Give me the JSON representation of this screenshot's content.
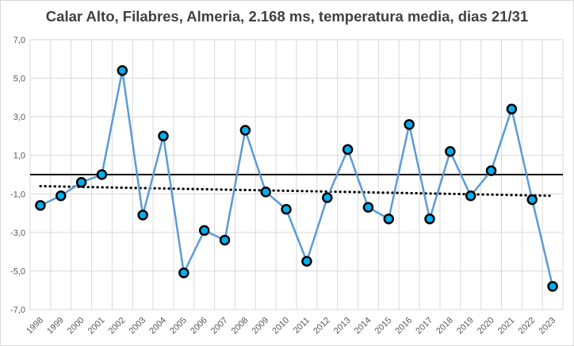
{
  "chart_data": {
    "type": "line",
    "title": "Calar Alto, Filabres, Almeria, 2.168 ms, temperatura media, dias 21/31",
    "xlabel": "",
    "ylabel": "",
    "ylim": [
      -7,
      7
    ],
    "yticks": [
      "7,0",
      "5,0",
      "3,0",
      "1,0",
      "-1,0",
      "-3,0",
      "-5,0",
      "-7,0"
    ],
    "grid": true,
    "categories": [
      "1998",
      "1999",
      "2000",
      "2001",
      "2002",
      "2003",
      "2004",
      "2005",
      "2006",
      "2007",
      "2008",
      "2009",
      "2010",
      "2011",
      "2012",
      "2013",
      "2014",
      "2015",
      "2016",
      "2017",
      "2018",
      "2019",
      "2020",
      "2021",
      "2022",
      "2023"
    ],
    "series": [
      {
        "values": [
          -1.6,
          -1.1,
          -0.4,
          0.0,
          5.4,
          -2.1,
          2.0,
          -5.1,
          -2.9,
          -3.4,
          2.3,
          -0.9,
          -1.8,
          -4.5,
          -1.2,
          1.3,
          -1.7,
          -2.3,
          2.6,
          -2.3,
          1.2,
          -1.1,
          0.2,
          3.4,
          -1.3,
          -5.8
        ],
        "color": "#5b9bd5",
        "marker_fill": "#00b0f0",
        "marker_edge": "#000000"
      }
    ],
    "reference_line": {
      "y": 0,
      "color": "#000000"
    },
    "trendline": {
      "start": -0.6,
      "end": -1.1,
      "style": "dotted",
      "color": "#000000"
    }
  }
}
